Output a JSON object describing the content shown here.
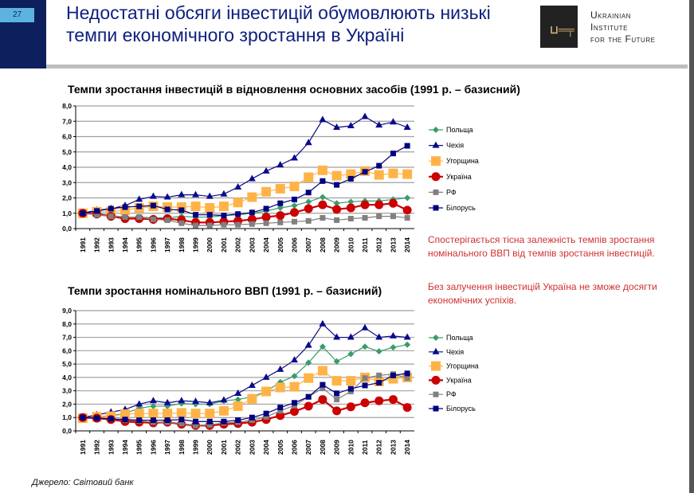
{
  "slide": {
    "number": "27",
    "title_line1": "Недостатні обсяги інвестицій обумовлюють низькі",
    "title_line2": "темпи економічного зростання в Україні"
  },
  "logo": {
    "line1": "Ukrainian",
    "line2": "Institute",
    "line3": "for the Future",
    "mark": "key-icon"
  },
  "notes": {
    "p1": "Спостерігається тісна залежність темпів зростання номінального ВВП від темпів зростання інвестицій.",
    "p2": "Без залучення інвестицій Україна не зможе досягти економічних успіхів."
  },
  "source": "Джерело: Світовий банк",
  "chart_data": [
    {
      "type": "line",
      "title": "Темпи зростання інвестицій в відновлення основних засобів (1991 р. – базисний)",
      "ylim": [
        0,
        8
      ],
      "yticks": [
        "0,0",
        "1,0",
        "2,0",
        "3,0",
        "4,0",
        "5,0",
        "6,0",
        "7,0",
        "8,0"
      ],
      "grid": true,
      "legend": "right",
      "x": [
        "1991",
        "1992",
        "1993",
        "1994",
        "1995",
        "1996",
        "1997",
        "1998",
        "1999",
        "2000",
        "2001",
        "2002",
        "2003",
        "2004",
        "2005",
        "2006",
        "2007",
        "2008",
        "2009",
        "2010",
        "2011",
        "2012",
        "2013",
        "2014"
      ],
      "series": [
        {
          "name": "Польща",
          "color": "#3a9c6c",
          "marker": "diamond",
          "values": [
            1.0,
            0.95,
            0.85,
            0.75,
            0.75,
            0.7,
            0.7,
            0.8,
            0.75,
            0.75,
            0.85,
            0.9,
            1.0,
            1.15,
            1.35,
            1.5,
            1.75,
            2.05,
            1.65,
            1.75,
            1.8,
            1.8,
            1.9,
            2.0
          ]
        },
        {
          "name": "Чехія",
          "color": "#0a0a8c",
          "marker": "triangle",
          "values": [
            1.0,
            1.2,
            1.3,
            1.5,
            1.9,
            2.1,
            2.05,
            2.2,
            2.2,
            2.1,
            2.25,
            2.7,
            3.25,
            3.75,
            4.15,
            4.6,
            5.6,
            7.1,
            6.6,
            6.7,
            7.3,
            6.75,
            6.95,
            6.6
          ]
        },
        {
          "name": "Угорщина",
          "color": "#ffb347",
          "marker": "bigsquare",
          "values": [
            1.0,
            1.1,
            1.1,
            1.2,
            1.35,
            1.45,
            1.4,
            1.4,
            1.45,
            1.35,
            1.45,
            1.7,
            2.05,
            2.4,
            2.6,
            2.75,
            3.35,
            3.8,
            3.45,
            3.55,
            3.75,
            3.5,
            3.6,
            3.55
          ]
        },
        {
          "name": "Україна",
          "color": "#cc0000",
          "marker": "circle",
          "values": [
            1.0,
            0.95,
            0.8,
            0.65,
            0.65,
            0.6,
            0.65,
            0.55,
            0.4,
            0.4,
            0.45,
            0.5,
            0.6,
            0.75,
            0.85,
            1.05,
            1.3,
            1.55,
            1.25,
            1.35,
            1.55,
            1.55,
            1.65,
            1.2
          ]
        },
        {
          "name": "РФ",
          "color": "#808080",
          "marker": "square",
          "values": [
            1.0,
            0.9,
            0.8,
            0.75,
            0.75,
            0.6,
            0.55,
            0.35,
            0.2,
            0.2,
            0.25,
            0.25,
            0.3,
            0.35,
            0.4,
            0.45,
            0.5,
            0.7,
            0.55,
            0.65,
            0.7,
            0.8,
            0.8,
            0.7
          ]
        },
        {
          "name": "Білорусь",
          "color": "#000080",
          "marker": "square",
          "values": [
            1.0,
            1.15,
            1.3,
            1.4,
            1.45,
            1.5,
            1.25,
            1.2,
            0.9,
            0.9,
            0.85,
            0.95,
            1.05,
            1.3,
            1.65,
            1.9,
            2.35,
            3.1,
            2.85,
            3.25,
            3.7,
            4.1,
            4.9,
            5.4
          ]
        }
      ]
    },
    {
      "type": "line",
      "title": "Темпи зростання номінального ВВП (1991 р. – базисний)",
      "ylim": [
        0,
        9
      ],
      "yticks": [
        "0,0",
        "1,0",
        "2,0",
        "3,0",
        "4,0",
        "5,0",
        "6,0",
        "7,0",
        "8,0",
        "9,0"
      ],
      "grid": true,
      "legend": "right",
      "x": [
        "1991",
        "1992",
        "1993",
        "1994",
        "1995",
        "1996",
        "1997",
        "1998",
        "1999",
        "2000",
        "2001",
        "2002",
        "2003",
        "2004",
        "2005",
        "2006",
        "2007",
        "2008",
        "2009",
        "2010",
        "2011",
        "2012",
        "2013",
        "2014"
      ],
      "series": [
        {
          "name": "Польща",
          "color": "#3a9c6c",
          "marker": "diamond",
          "values": [
            1.0,
            1.05,
            1.15,
            1.3,
            1.7,
            1.85,
            1.85,
            2.05,
            2.0,
            2.0,
            2.25,
            2.35,
            2.55,
            2.95,
            3.65,
            4.1,
            5.1,
            6.3,
            5.2,
            5.75,
            6.3,
            5.95,
            6.25,
            6.45
          ]
        },
        {
          "name": "Чехія",
          "color": "#0a0a8c",
          "marker": "triangle",
          "values": [
            1.0,
            1.2,
            1.4,
            1.6,
            2.0,
            2.25,
            2.1,
            2.25,
            2.2,
            2.1,
            2.3,
            2.8,
            3.4,
            4.0,
            4.6,
            5.3,
            6.4,
            8.0,
            7.0,
            7.0,
            7.7,
            7.0,
            7.1,
            7.0
          ]
        },
        {
          "name": "Угорщина",
          "color": "#ffb347",
          "marker": "bigsquare",
          "values": [
            0.95,
            1.05,
            1.1,
            1.25,
            1.3,
            1.3,
            1.3,
            1.35,
            1.3,
            1.3,
            1.5,
            1.85,
            2.4,
            2.95,
            3.25,
            3.3,
            3.95,
            4.5,
            3.75,
            3.75,
            4.0,
            3.7,
            3.9,
            4.0
          ]
        },
        {
          "name": "Україна",
          "color": "#cc0000",
          "marker": "circle",
          "values": [
            1.0,
            0.95,
            0.85,
            0.7,
            0.65,
            0.6,
            0.65,
            0.5,
            0.4,
            0.4,
            0.5,
            0.55,
            0.65,
            0.85,
            1.15,
            1.45,
            1.85,
            2.35,
            1.5,
            1.8,
            2.1,
            2.25,
            2.35,
            1.75
          ]
        },
        {
          "name": "РФ",
          "color": "#808080",
          "marker": "square",
          "values": [
            1.0,
            0.95,
            0.9,
            0.8,
            0.75,
            0.65,
            0.65,
            0.55,
            0.4,
            0.45,
            0.6,
            0.65,
            0.8,
            1.05,
            1.5,
            1.9,
            2.55,
            3.2,
            2.35,
            2.95,
            3.95,
            4.15,
            4.25,
            3.95
          ]
        },
        {
          "name": "Білорусь",
          "color": "#000080",
          "marker": "square",
          "values": [
            1.0,
            0.95,
            0.9,
            0.85,
            0.8,
            0.8,
            0.8,
            0.85,
            0.7,
            0.7,
            0.7,
            0.8,
            1.0,
            1.3,
            1.75,
            2.1,
            2.55,
            3.45,
            2.8,
            3.15,
            3.4,
            3.6,
            4.15,
            4.3
          ]
        }
      ]
    }
  ]
}
